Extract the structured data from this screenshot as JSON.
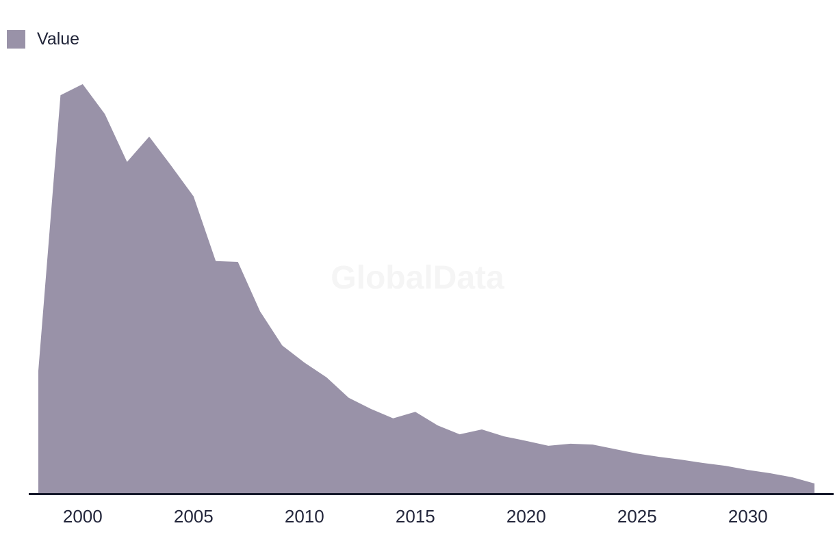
{
  "legend": {
    "label": "Value",
    "swatch_color": "#9992a8"
  },
  "watermark": "GlobalData",
  "colors": {
    "area_fill": "#9992a8",
    "axis_line": "#15192b",
    "label_text": "#23263b",
    "watermark": "#f5f5f5",
    "background": "#ffffff"
  },
  "x_axis": {
    "tick_labels": [
      "2000",
      "2005",
      "2010",
      "2015",
      "2020",
      "2025",
      "2030"
    ]
  },
  "chart_data": {
    "type": "area",
    "title": "",
    "xlabel": "",
    "ylabel": "",
    "legend_position": "top-left",
    "grid": false,
    "y_axis_shown": false,
    "note": "No y-axis labels are visible; values are normalized so the 2000 peak = 100",
    "x_range": [
      1998,
      2033
    ],
    "ylim_normalized": [
      0,
      100
    ],
    "series": [
      {
        "name": "Value",
        "x": [
          1998,
          1999,
          2000,
          2001,
          2002,
          2003,
          2004,
          2005,
          2006,
          2007,
          2008,
          2009,
          2010,
          2011,
          2012,
          2013,
          2014,
          2015,
          2016,
          2017,
          2018,
          2019,
          2020,
          2021,
          2022,
          2023,
          2024,
          2025,
          2026,
          2027,
          2028,
          2029,
          2030,
          2031,
          2032,
          2033
        ],
        "values": [
          30,
          97.3,
          100,
          92.7,
          81,
          87.2,
          80,
          72.6,
          56.8,
          56.6,
          44.5,
          36.2,
          32,
          28.4,
          23.4,
          20.7,
          18.4,
          20,
          16.7,
          14.5,
          15.7,
          14,
          12.9,
          11.7,
          12.2,
          12,
          10.9,
          9.8,
          9,
          8.3,
          7.5,
          6.8,
          5.8,
          5,
          4,
          2.5
        ]
      }
    ]
  }
}
